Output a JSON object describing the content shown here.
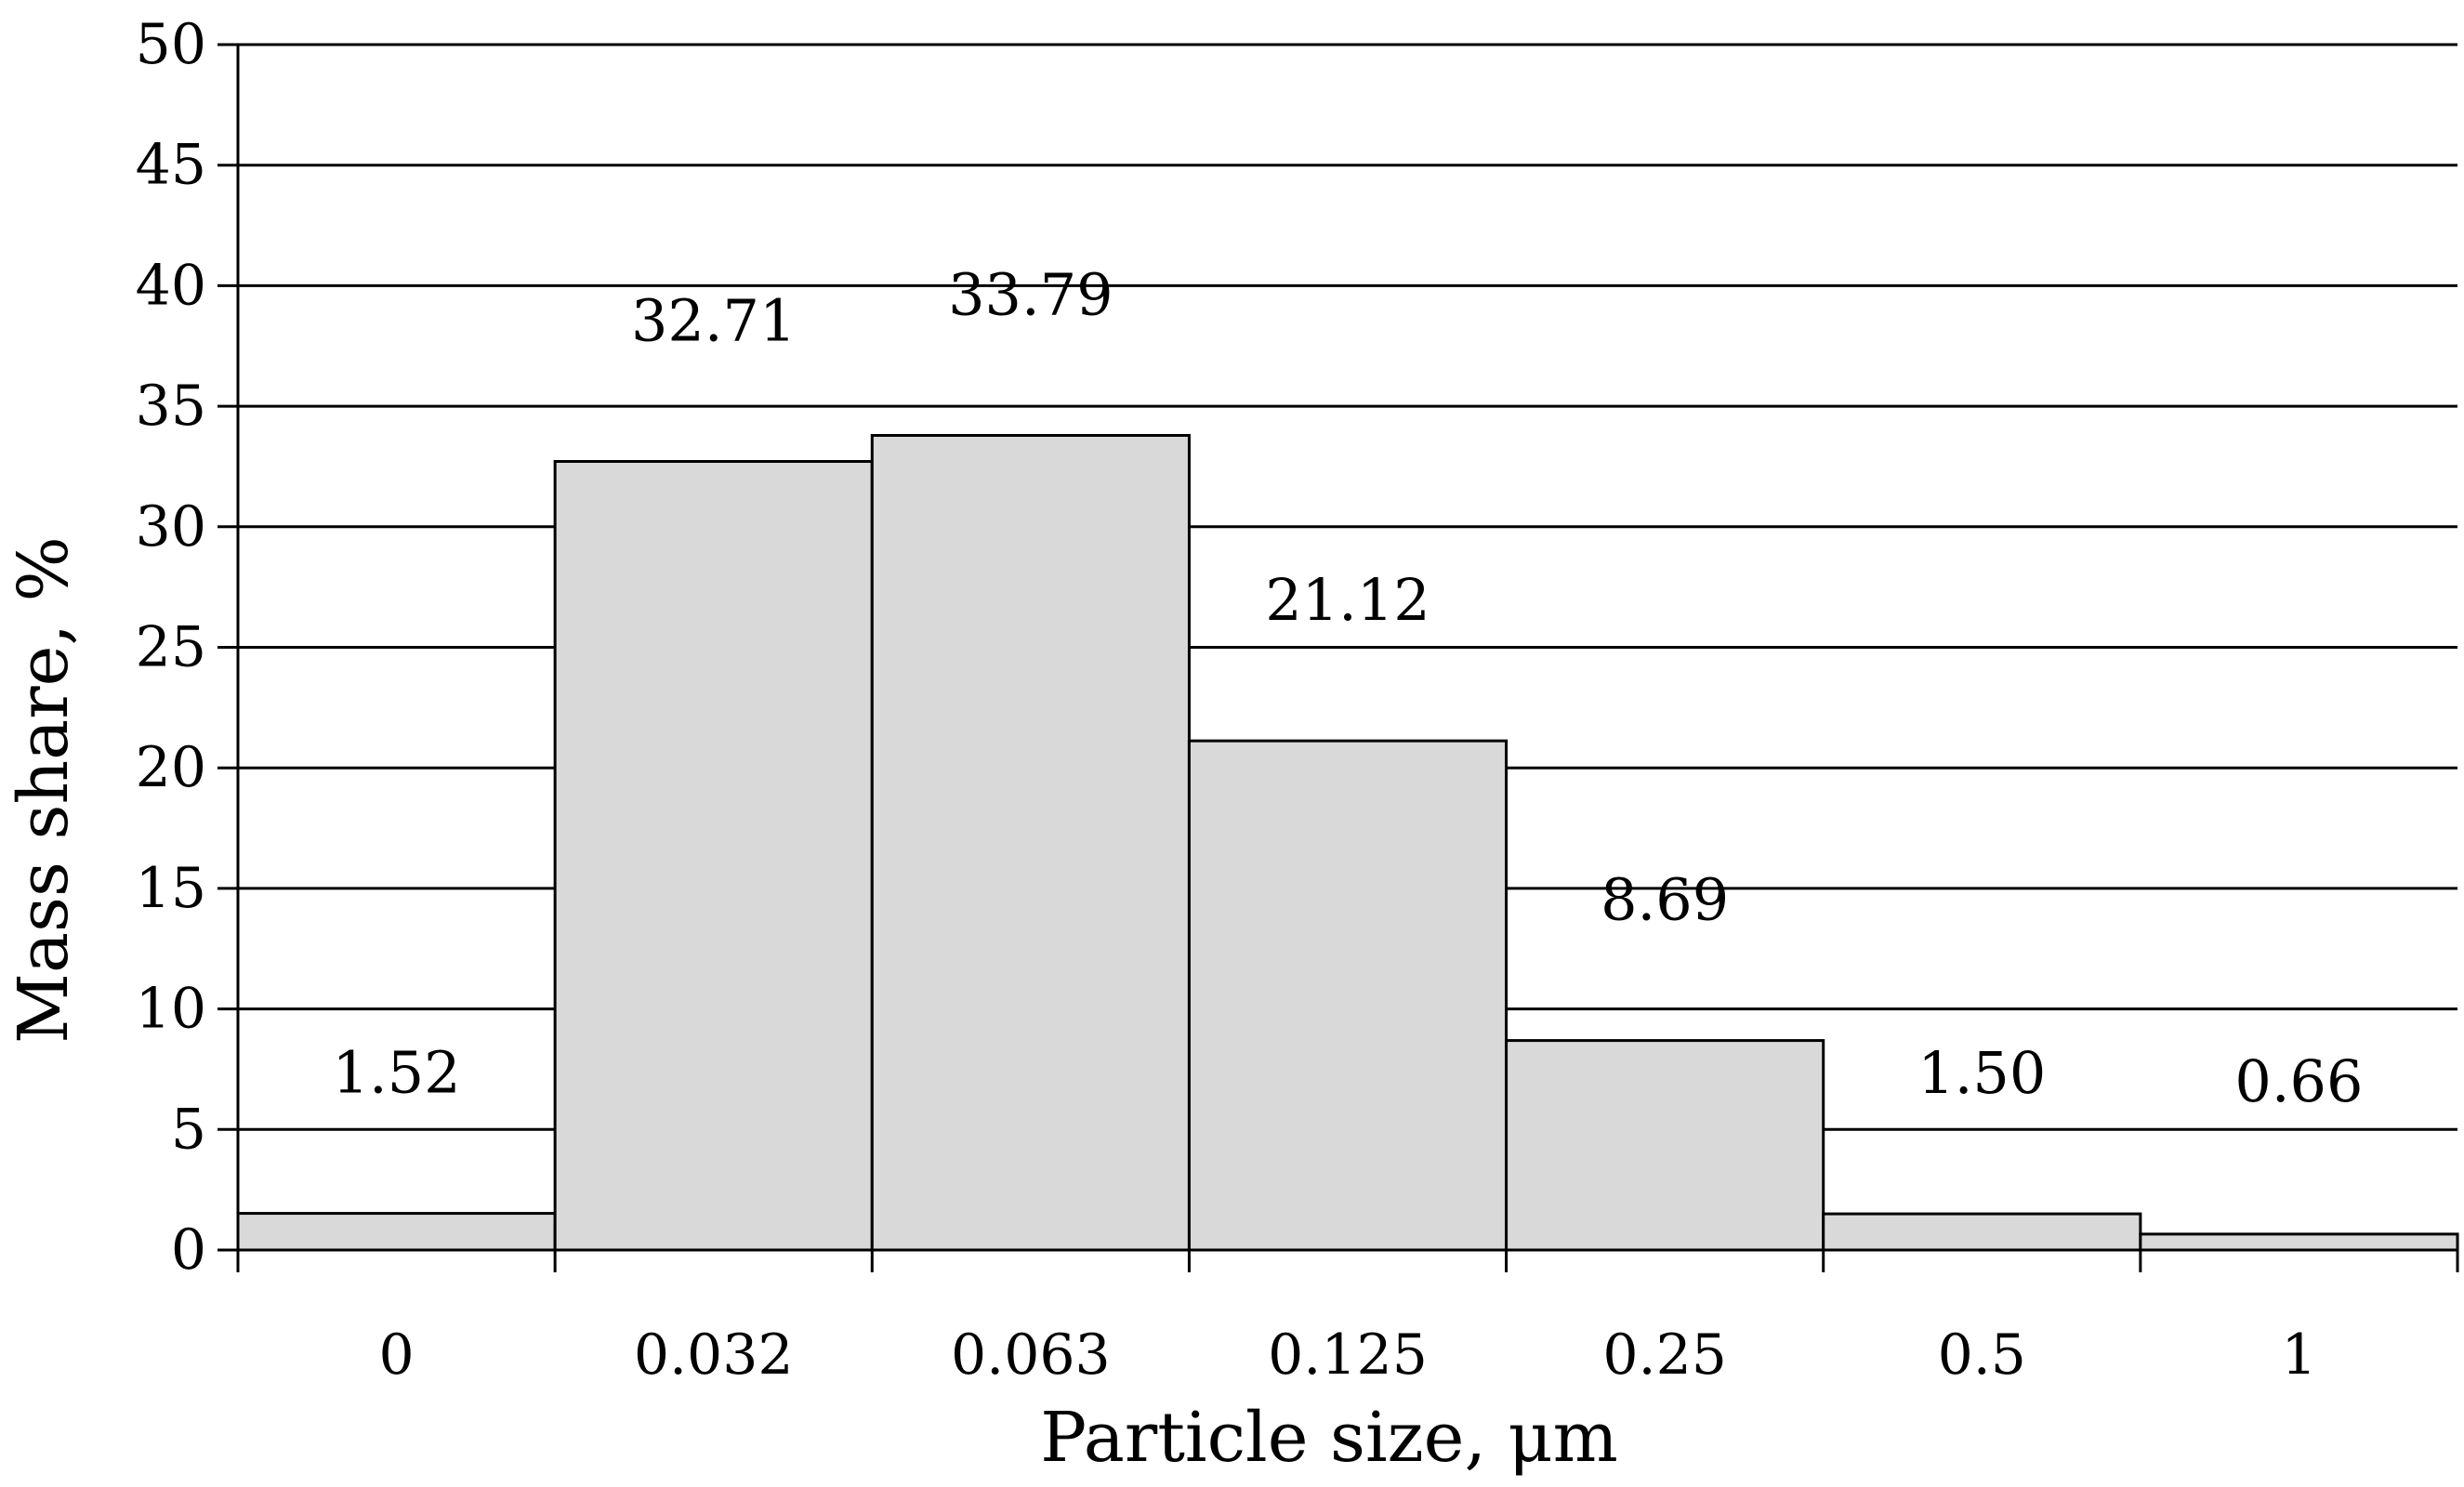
{
  "chart_data": {
    "type": "bar",
    "categories": [
      "0",
      "0.032",
      "0.063",
      "0.125",
      "0.25",
      "0.5",
      "1"
    ],
    "values": [
      1.52,
      32.71,
      33.79,
      21.12,
      8.69,
      1.5,
      0.66
    ],
    "data_labels": [
      "1.52",
      "32.71",
      "33.79",
      "21.12",
      "8.69",
      "1.50",
      "0.66"
    ],
    "xlabel": "Particle size, μm",
    "ylabel": "Mass share, %",
    "ylim": [
      0,
      50
    ],
    "yticks": [
      "0",
      "5",
      "10",
      "15",
      "20",
      "25",
      "30",
      "35",
      "40",
      "45",
      "50"
    ],
    "grid": true,
    "legend": "none",
    "bar_color": "#d9d9d9",
    "edge_color": "#000000"
  }
}
